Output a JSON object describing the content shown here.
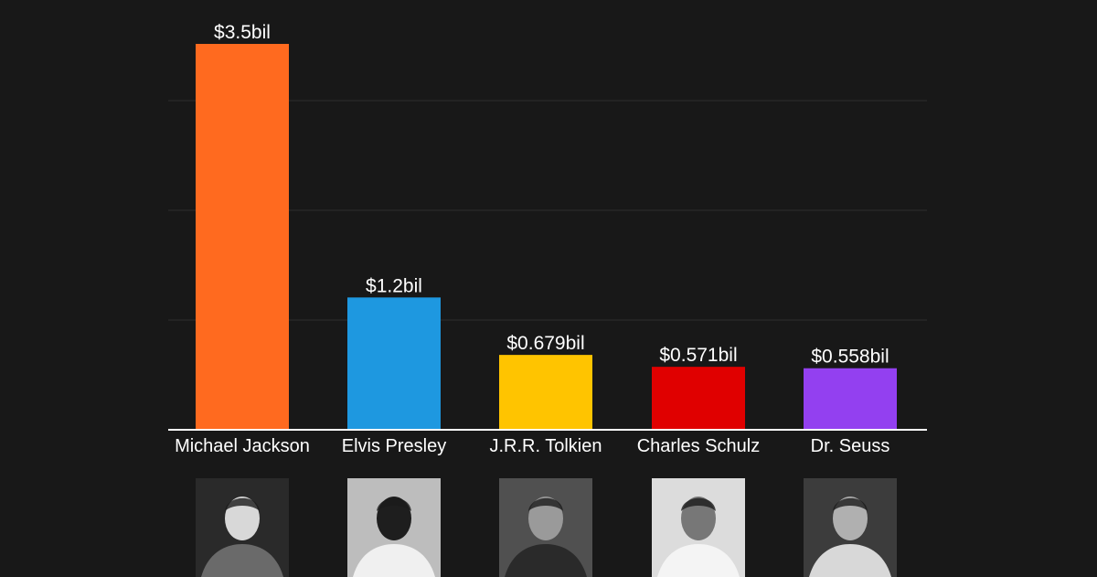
{
  "chart_data": {
    "type": "bar",
    "categories": [
      "Michael Jackson",
      "Elvis Presley",
      "J.R.R. Tolkien",
      "Charles Schulz",
      "Dr. Seuss"
    ],
    "values": [
      3.5,
      1.2,
      0.679,
      0.571,
      0.558
    ],
    "data_labels": [
      "$3.5bil",
      "$1.2bil",
      "$0.679bil",
      "$0.571bil",
      "$0.558bil"
    ],
    "colors": [
      "#FF6A1F",
      "#1E98E0",
      "#FFC400",
      "#E00000",
      "#9340F0"
    ],
    "ylim": [
      0,
      3.5
    ],
    "grid": true,
    "title": "",
    "xlabel": "",
    "ylabel": ""
  },
  "photos": [
    {
      "icon": "portrait-photo-michael-jackson"
    },
    {
      "icon": "portrait-photo-elvis-presley"
    },
    {
      "icon": "portrait-photo-jrr-tolkien"
    },
    {
      "icon": "portrait-photo-charles-schulz"
    },
    {
      "icon": "portrait-photo-dr-seuss"
    }
  ]
}
